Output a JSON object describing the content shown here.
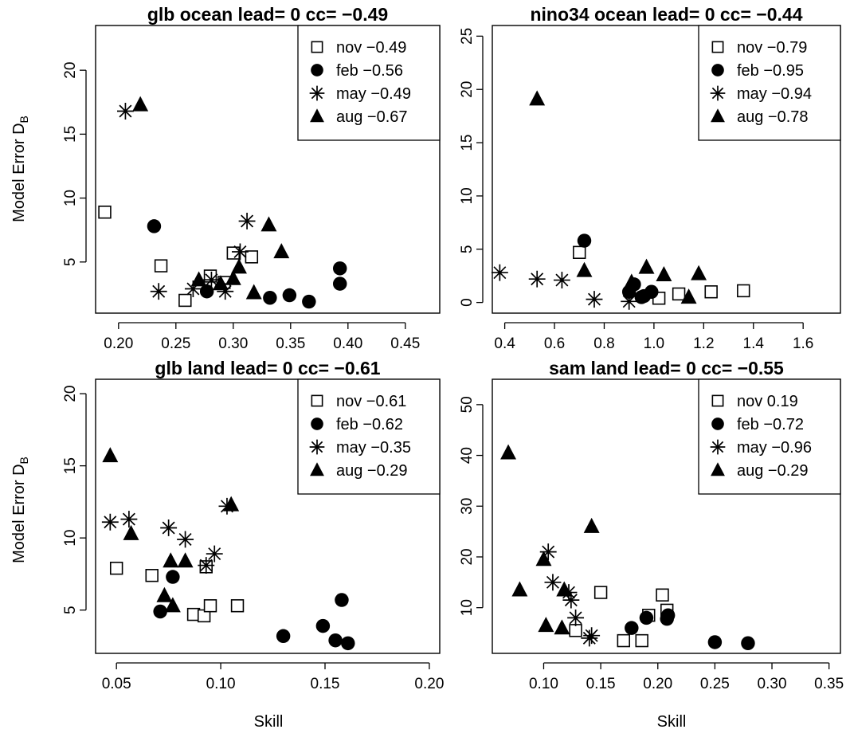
{
  "figure": {
    "ylabel": "Model Error D",
    "ylabel_sub": "B",
    "xlabel": "Skill"
  },
  "chart_data": [
    {
      "type": "scatter",
      "title": "glb ocean lead= 0 cc= −0.49",
      "xlim": [
        0.18,
        0.48
      ],
      "ylim": [
        1.0,
        23.5
      ],
      "xticks": [
        "0.20",
        "0.25",
        "0.30",
        "0.35",
        "0.40",
        "0.45"
      ],
      "yticks": [
        "5",
        "10",
        "15",
        "20"
      ],
      "legend": {
        "position": "top-right"
      },
      "series": [
        {
          "name": "nov",
          "legend_text": "nov −0.49",
          "marker": "square-open",
          "x": [
            0.188,
            0.237,
            0.258,
            0.28,
            0.292,
            0.3,
            0.316
          ],
          "y": [
            8.9,
            4.7,
            2.0,
            3.9,
            3.4,
            5.7,
            5.4
          ]
        },
        {
          "name": "feb",
          "legend_text": "feb −0.56",
          "marker": "circle-filled",
          "x": [
            0.231,
            0.277,
            0.332,
            0.349,
            0.366,
            0.393,
            0.393
          ],
          "y": [
            7.8,
            2.7,
            2.2,
            2.4,
            1.9,
            4.5,
            3.3
          ]
        },
        {
          "name": "may",
          "legend_text": "may −0.49",
          "marker": "asterisk",
          "x": [
            0.206,
            0.235,
            0.265,
            0.281,
            0.293,
            0.306,
            0.312
          ],
          "y": [
            16.8,
            2.7,
            2.9,
            3.6,
            2.7,
            5.8,
            8.2
          ]
        },
        {
          "name": "aug",
          "legend_text": "aug −0.67",
          "marker": "triangle-filled",
          "x": [
            0.219,
            0.27,
            0.289,
            0.3,
            0.305,
            0.318,
            0.331,
            0.342
          ],
          "y": [
            17.3,
            3.6,
            3.3,
            3.7,
            4.6,
            2.6,
            7.9,
            5.8
          ]
        }
      ]
    },
    {
      "type": "scatter",
      "title": "nino34 ocean lead= 0 cc= −0.44",
      "xlim": [
        0.35,
        1.75
      ],
      "ylim": [
        -1.0,
        26.0
      ],
      "xticks": [
        "0.4",
        "0.6",
        "0.8",
        "1.0",
        "1.2",
        "1.4",
        "1.6"
      ],
      "yticks": [
        "0",
        "5",
        "10",
        "15",
        "20",
        "25"
      ],
      "legend": {
        "position": "top-right"
      },
      "series": [
        {
          "name": "nov",
          "legend_text": "nov −0.79",
          "marker": "square-open",
          "x": [
            0.7,
            1.02,
            1.1,
            1.23,
            1.36
          ],
          "y": [
            4.7,
            0.4,
            0.8,
            1.0,
            1.1
          ]
        },
        {
          "name": "feb",
          "legend_text": "feb −0.95",
          "marker": "circle-filled",
          "x": [
            0.72,
            0.9,
            0.92,
            0.95,
            0.96,
            0.99
          ],
          "y": [
            5.8,
            1.0,
            1.7,
            0.5,
            0.6,
            1.0
          ]
        },
        {
          "name": "may",
          "legend_text": "may −0.94",
          "marker": "asterisk",
          "x": [
            0.38,
            0.53,
            0.63,
            0.76,
            0.9
          ],
          "y": [
            2.8,
            2.2,
            2.1,
            0.3,
            0.1
          ]
        },
        {
          "name": "aug",
          "legend_text": "aug −0.78",
          "marker": "triangle-filled",
          "x": [
            0.53,
            0.72,
            0.91,
            0.97,
            1.04,
            1.14,
            1.18
          ],
          "y": [
            19.1,
            3.0,
            1.9,
            3.3,
            2.6,
            0.5,
            2.7
          ]
        }
      ]
    },
    {
      "type": "scatter",
      "title": "glb land lead= 0 cc= −0.61",
      "xlim": [
        0.04,
        0.205
      ],
      "ylim": [
        2.0,
        21.0
      ],
      "xticks": [
        "0.05",
        "0.10",
        "0.15",
        "0.20"
      ],
      "yticks": [
        "5",
        "10",
        "15",
        "20"
      ],
      "legend": {
        "position": "top-right"
      },
      "series": [
        {
          "name": "nov",
          "legend_text": "nov −0.61",
          "marker": "square-open",
          "x": [
            0.05,
            0.067,
            0.087,
            0.092,
            0.093,
            0.095,
            0.108
          ],
          "y": [
            7.9,
            7.4,
            4.7,
            4.6,
            8.0,
            5.3,
            5.3
          ]
        },
        {
          "name": "feb",
          "legend_text": "feb −0.62",
          "marker": "circle-filled",
          "x": [
            0.071,
            0.077,
            0.13,
            0.149,
            0.155,
            0.158,
            0.161
          ],
          "y": [
            4.9,
            7.3,
            3.2,
            3.9,
            2.9,
            5.7,
            2.7
          ]
        },
        {
          "name": "may",
          "legend_text": "may −0.35",
          "marker": "asterisk",
          "x": [
            0.047,
            0.056,
            0.075,
            0.083,
            0.093,
            0.097,
            0.103
          ],
          "y": [
            11.1,
            11.3,
            10.7,
            9.9,
            8.1,
            8.9,
            12.2
          ]
        },
        {
          "name": "aug",
          "legend_text": "aug −0.29",
          "marker": "triangle-filled",
          "x": [
            0.047,
            0.057,
            0.073,
            0.076,
            0.077,
            0.083,
            0.105
          ],
          "y": [
            15.7,
            10.3,
            6.0,
            8.4,
            5.3,
            8.4,
            12.3
          ]
        }
      ]
    },
    {
      "type": "scatter",
      "title": "sam land lead= 0 cc= −0.55",
      "xlim": [
        0.055,
        0.36
      ],
      "ylim": [
        1.0,
        55.0
      ],
      "xticks": [
        "0.10",
        "0.15",
        "0.20",
        "0.25",
        "0.30",
        "0.35"
      ],
      "yticks": [
        "10",
        "20",
        "30",
        "40",
        "50"
      ],
      "legend": {
        "position": "top-right"
      },
      "series": [
        {
          "name": "nov",
          "legend_text": "nov 0.19",
          "marker": "square-open",
          "x": [
            0.128,
            0.15,
            0.17,
            0.186,
            0.192,
            0.204,
            0.208
          ],
          "y": [
            5.5,
            13.0,
            3.5,
            3.5,
            8.5,
            12.5,
            9.5
          ]
        },
        {
          "name": "feb",
          "legend_text": "feb −0.72",
          "marker": "circle-filled",
          "x": [
            0.177,
            0.19,
            0.208,
            0.209,
            0.25,
            0.279
          ],
          "y": [
            6.0,
            8.0,
            7.8,
            8.5,
            3.2,
            3.0
          ]
        },
        {
          "name": "may",
          "legend_text": "may −0.96",
          "marker": "asterisk",
          "x": [
            0.104,
            0.108,
            0.122,
            0.124,
            0.128,
            0.14,
            0.142
          ],
          "y": [
            21.0,
            15.0,
            13.0,
            11.5,
            8.0,
            4.0,
            4.5
          ]
        },
        {
          "name": "aug",
          "legend_text": "aug −0.29",
          "marker": "triangle-filled",
          "x": [
            0.069,
            0.079,
            0.1,
            0.102,
            0.116,
            0.118,
            0.142
          ],
          "y": [
            40.5,
            13.5,
            19.5,
            6.5,
            6.0,
            13.5,
            26.0
          ]
        }
      ]
    }
  ]
}
